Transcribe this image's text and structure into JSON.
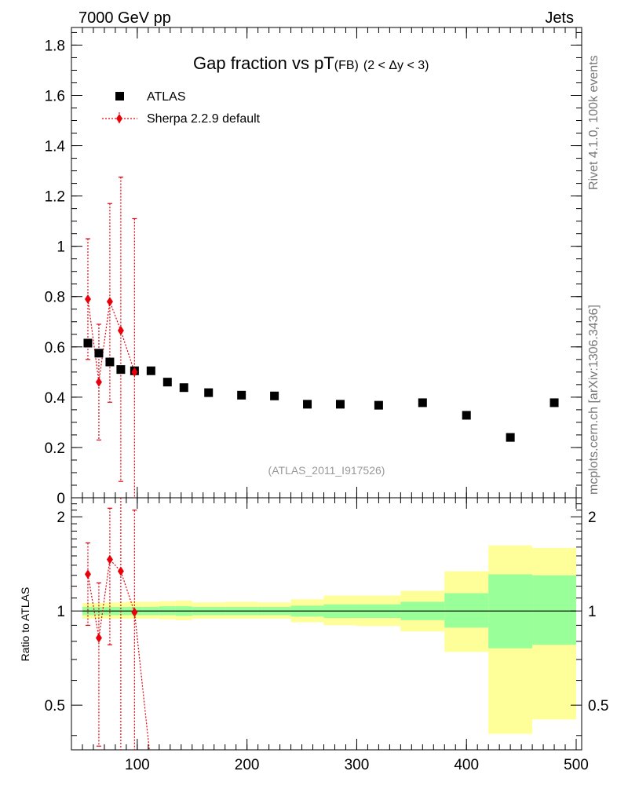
{
  "header": {
    "energy_label": "7000 GeV pp",
    "category_label": "Jets"
  },
  "side_labels": {
    "rivet": "Rivet 4.1.0,  100k events",
    "site": "mcplots.cern.ch [arXiv:1306.3436]"
  },
  "colors": {
    "data": "#000000",
    "mc": "#e8000b",
    "band_inner": "#99ff99",
    "band_outer": "#ffff99"
  },
  "chart_data": [
    {
      "type": "scatter",
      "title": "Gap fraction vs pT",
      "title_sub": "(FB)",
      "title_range": "(2 < Δy < 3)",
      "analysis_id": "(ATLAS_2011_I917526)",
      "xlabel": "",
      "ylabel": "",
      "xlim": [
        40,
        505
      ],
      "ylim": [
        0,
        1.87
      ],
      "yticks": [
        0,
        0.2,
        0.4,
        0.6,
        0.8,
        1,
        1.2,
        1.4,
        1.6,
        1.8
      ],
      "ytick_labels": [
        "0",
        "0.2",
        "0.4",
        "0.6",
        "0.8",
        "1",
        "1.2",
        "1.4",
        "1.6",
        "1.8"
      ],
      "legend": [
        "ATLAS",
        "Sherpa 2.2.9 default"
      ],
      "legend_position": "top-left",
      "series": [
        {
          "name": "ATLAS",
          "marker": "square",
          "x": [
            55,
            65,
            75,
            85,
            97.5,
            112.5,
            127.5,
            142.5,
            165,
            195,
            225,
            255,
            285,
            320,
            360,
            400,
            440,
            480
          ],
          "y": [
            0.615,
            0.575,
            0.54,
            0.51,
            0.505,
            0.505,
            0.46,
            0.438,
            0.418,
            0.408,
            0.405,
            0.372,
            0.372,
            0.368,
            0.378,
            0.328,
            0.24,
            0.378
          ]
        },
        {
          "name": "Sherpa 2.2.9 default",
          "marker": "diamond",
          "x": [
            55,
            65,
            75,
            85,
            97.5
          ],
          "y": [
            0.79,
            0.46,
            0.78,
            0.665,
            0.5
          ],
          "yerr_low": [
            0.24,
            0.23,
            0.4,
            0.6,
            0.5
          ],
          "yerr_high": [
            0.24,
            0.23,
            0.39,
            0.61,
            0.61
          ]
        }
      ]
    },
    {
      "type": "scatter",
      "title": "",
      "xlabel": "",
      "ylabel": "Ratio to ATLAS",
      "xlim": [
        40,
        505
      ],
      "ylim": [
        0.36,
        2.3
      ],
      "yscale": "log",
      "yticks": [
        0.5,
        1,
        2
      ],
      "ytick_labels": [
        "0.5",
        "1",
        "2"
      ],
      "xticks": [
        100,
        200,
        300,
        400,
        500
      ],
      "xtick_labels": [
        "100",
        "200",
        "300",
        "400",
        "500"
      ],
      "band_bins": [
        {
          "x": [
            50,
            60
          ],
          "inner": [
            0.97,
            1.03
          ],
          "outer": [
            0.945,
            1.06
          ]
        },
        {
          "x": [
            60,
            70
          ],
          "inner": [
            0.97,
            1.03
          ],
          "outer": [
            0.945,
            1.06
          ]
        },
        {
          "x": [
            70,
            80
          ],
          "inner": [
            0.97,
            1.03
          ],
          "outer": [
            0.945,
            1.065
          ]
        },
        {
          "x": [
            80,
            90
          ],
          "inner": [
            0.97,
            1.03
          ],
          "outer": [
            0.945,
            1.065
          ]
        },
        {
          "x": [
            90,
            105
          ],
          "inner": [
            0.97,
            1.03
          ],
          "outer": [
            0.945,
            1.07
          ]
        },
        {
          "x": [
            105,
            120
          ],
          "inner": [
            0.97,
            1.03
          ],
          "outer": [
            0.945,
            1.07
          ]
        },
        {
          "x": [
            120,
            135
          ],
          "inner": [
            0.97,
            1.035
          ],
          "outer": [
            0.94,
            1.075
          ]
        },
        {
          "x": [
            135,
            150
          ],
          "inner": [
            0.965,
            1.035
          ],
          "outer": [
            0.935,
            1.08
          ]
        },
        {
          "x": [
            150,
            180
          ],
          "inner": [
            0.97,
            1.03
          ],
          "outer": [
            0.945,
            1.065
          ]
        },
        {
          "x": [
            180,
            210
          ],
          "inner": [
            0.97,
            1.03
          ],
          "outer": [
            0.945,
            1.07
          ]
        },
        {
          "x": [
            210,
            240
          ],
          "inner": [
            0.97,
            1.03
          ],
          "outer": [
            0.945,
            1.065
          ]
        },
        {
          "x": [
            240,
            270
          ],
          "inner": [
            0.96,
            1.04
          ],
          "outer": [
            0.92,
            1.09
          ]
        },
        {
          "x": [
            270,
            300
          ],
          "inner": [
            0.95,
            1.05
          ],
          "outer": [
            0.9,
            1.12
          ]
        },
        {
          "x": [
            300,
            340
          ],
          "inner": [
            0.95,
            1.05
          ],
          "outer": [
            0.895,
            1.12
          ]
        },
        {
          "x": [
            340,
            380
          ],
          "inner": [
            0.935,
            1.07
          ],
          "outer": [
            0.86,
            1.16
          ]
        },
        {
          "x": [
            380,
            420
          ],
          "inner": [
            0.885,
            1.14
          ],
          "outer": [
            0.74,
            1.34
          ]
        },
        {
          "x": [
            420,
            460
          ],
          "inner": [
            0.76,
            1.31
          ],
          "outer": [
            0.405,
            1.62
          ]
        },
        {
          "x": [
            460,
            500
          ],
          "inner": [
            0.78,
            1.3
          ],
          "outer": [
            0.45,
            1.59
          ]
        }
      ],
      "series": [
        {
          "name": "Sherpa 2.2.9 default",
          "marker": "diamond",
          "x": [
            55,
            65,
            75,
            85,
            97.5
          ],
          "y": [
            1.31,
            0.82,
            1.46,
            1.34,
            0.99
          ],
          "yerr_low": [
            0.41,
            0.45,
            0.68,
            1.2,
            1.0
          ],
          "yerr_high": [
            0.34,
            0.41,
            0.67,
            1.2,
            1.11
          ]
        }
      ]
    }
  ]
}
